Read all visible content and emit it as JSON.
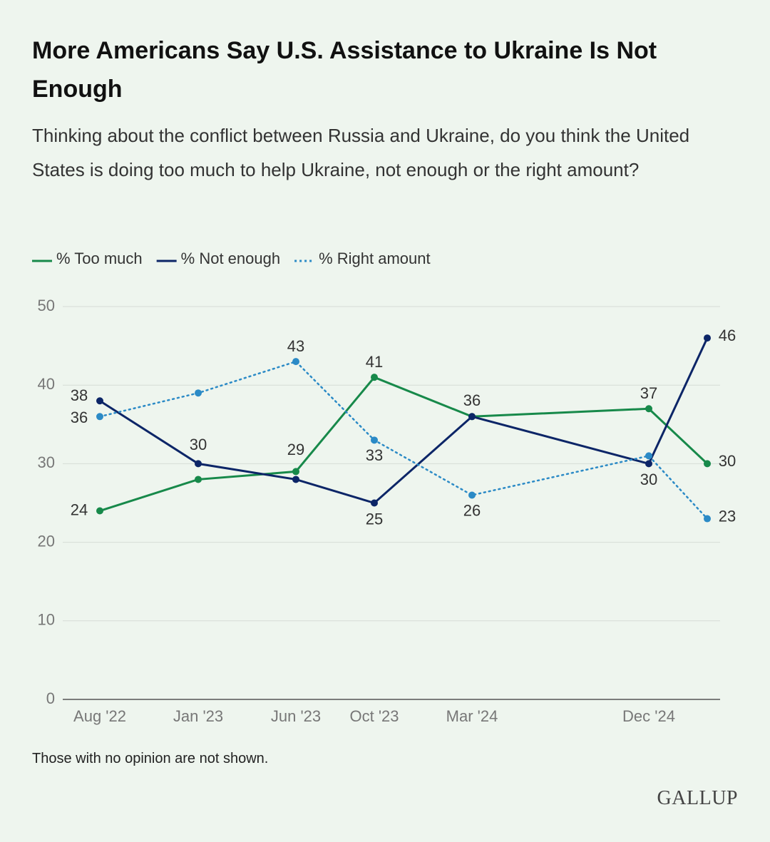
{
  "chart_data": {
    "type": "line",
    "title": "More Americans Say U.S. Assistance to Ukraine Is Not Enough",
    "subtitle": "Thinking about the conflict between Russia and Ukraine, do you think the United States is doing too much to help Ukraine, not enough or the right amount?",
    "note": "Those with no opinion are not shown.",
    "source": "GALLUP",
    "categories": [
      "Aug '22",
      "Jan '23",
      "Jun '23",
      "Oct '23",
      "Mar '24",
      "Dec '24",
      null
    ],
    "series": [
      {
        "name": "% Too much",
        "color": "#17894a",
        "line_style": "solid",
        "values": [
          24,
          28,
          29,
          41,
          36,
          37,
          30
        ]
      },
      {
        "name": "% Not enough",
        "color": "#0c2567",
        "line_style": "solid",
        "values": [
          38,
          30,
          28,
          25,
          36,
          30,
          46
        ]
      },
      {
        "name": "% Right amount",
        "color": "#2b8ac6",
        "line_style": "dotted",
        "values": [
          36,
          39,
          43,
          33,
          26,
          31,
          23
        ]
      }
    ],
    "ylim": [
      0,
      50
    ],
    "yticks": [
      0,
      10,
      20,
      30,
      40,
      50
    ],
    "grid": true
  }
}
